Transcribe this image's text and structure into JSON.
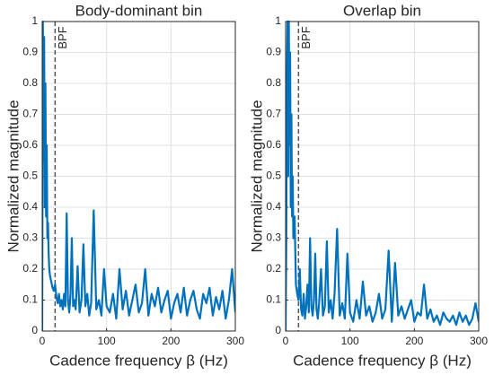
{
  "chart_data": [
    {
      "type": "line",
      "title": "Body-dominant bin",
      "xlabel": "Cadence frequency β (Hz)",
      "ylabel": "Normalized magnitude",
      "color": "#0072bd",
      "grid": true,
      "xlim": [
        0,
        300
      ],
      "ylim": [
        0,
        1
      ],
      "xticks": [
        0,
        100,
        200,
        300
      ],
      "yticks": [
        0,
        0.1,
        0.2,
        0.3,
        0.4,
        0.5,
        0.6,
        0.7,
        0.8,
        0.9,
        1
      ],
      "vline": 20,
      "annotation": "BPF",
      "x": [
        0,
        1,
        2,
        3,
        4,
        5,
        6,
        7,
        8,
        9,
        10,
        11,
        12,
        14,
        16,
        18,
        20,
        22,
        24,
        26,
        28,
        30,
        32,
        34,
        36,
        38,
        40,
        42,
        44,
        46,
        48,
        50,
        52,
        55,
        58,
        61,
        64,
        67,
        70,
        73,
        76,
        80,
        84,
        88,
        92,
        96,
        100,
        105,
        110,
        115,
        120,
        125,
        130,
        135,
        140,
        145,
        150,
        155,
        160,
        165,
        170,
        175,
        180,
        185,
        190,
        195,
        200,
        205,
        210,
        215,
        220,
        225,
        230,
        235,
        240,
        245,
        250,
        255,
        260,
        265,
        270,
        275,
        280,
        285,
        290,
        295,
        300
      ],
      "values": [
        0,
        1,
        0.55,
        0.95,
        0.4,
        0.8,
        0.37,
        0.6,
        0.3,
        0.35,
        0.25,
        0.2,
        0.18,
        0.16,
        0.14,
        0.13,
        0.15,
        0.11,
        0.09,
        0.12,
        0.08,
        0.1,
        0.07,
        0.12,
        0.08,
        0.38,
        0.1,
        0.06,
        0.12,
        0.3,
        0.08,
        0.1,
        0.07,
        0.21,
        0.06,
        0.1,
        0.28,
        0.08,
        0.12,
        0.05,
        0.09,
        0.39,
        0.07,
        0.1,
        0.05,
        0.2,
        0.08,
        0.06,
        0.12,
        0.04,
        0.2,
        0.07,
        0.13,
        0.05,
        0.1,
        0.15,
        0.06,
        0.09,
        0.2,
        0.05,
        0.12,
        0.08,
        0.14,
        0.06,
        0.1,
        0.13,
        0.04,
        0.09,
        0.12,
        0.06,
        0.14,
        0.05,
        0.1,
        0.13,
        0.07,
        0.04,
        0.12,
        0.09,
        0.14,
        0.05,
        0.11,
        0.07,
        0.13,
        0.04,
        0.1,
        0.2,
        0.06
      ]
    },
    {
      "type": "line",
      "title": "Overlap bin",
      "xlabel": "Cadence frequency β (Hz)",
      "ylabel": "Normalized magnitude",
      "color": "#0072bd",
      "grid": true,
      "xlim": [
        0,
        300
      ],
      "ylim": [
        0,
        1
      ],
      "xticks": [
        0,
        100,
        200,
        300
      ],
      "yticks": [
        0,
        0.1,
        0.2,
        0.3,
        0.4,
        0.5,
        0.6,
        0.7,
        0.8,
        0.9,
        1
      ],
      "vline": 20,
      "annotation": "BPF",
      "x": [
        0,
        1,
        2,
        3,
        4,
        5,
        6,
        7,
        8,
        9,
        10,
        11,
        12,
        14,
        16,
        18,
        20,
        22,
        24,
        26,
        28,
        30,
        32,
        34,
        36,
        38,
        40,
        42,
        44,
        46,
        48,
        50,
        52,
        55,
        58,
        61,
        64,
        67,
        70,
        73,
        76,
        80,
        84,
        88,
        92,
        96,
        100,
        105,
        110,
        115,
        120,
        125,
        130,
        135,
        140,
        145,
        150,
        155,
        160,
        165,
        170,
        175,
        180,
        185,
        190,
        195,
        200,
        205,
        210,
        215,
        220,
        225,
        230,
        235,
        240,
        245,
        250,
        255,
        260,
        265,
        270,
        275,
        280,
        285,
        290,
        295,
        300
      ],
      "values": [
        0,
        0.3,
        0.8,
        1,
        0.5,
        1,
        0.6,
        0.9,
        0.4,
        0.7,
        0.37,
        0.5,
        0.3,
        0.37,
        0.15,
        0.12,
        0.1,
        0.2,
        0.07,
        0.05,
        0.12,
        0.04,
        0.08,
        0.15,
        0.06,
        0.3,
        0.08,
        0.05,
        0.1,
        0.25,
        0.07,
        0.04,
        0.09,
        0.2,
        0.05,
        0.08,
        0.29,
        0.06,
        0.1,
        0.04,
        0.12,
        0.33,
        0.05,
        0.09,
        0.04,
        0.25,
        0.06,
        0.03,
        0.1,
        0.04,
        0.16,
        0.05,
        0.08,
        0.03,
        0.06,
        0.12,
        0.04,
        0.07,
        0.26,
        0.03,
        0.22,
        0.05,
        0.08,
        0.04,
        0.07,
        0.1,
        0.03,
        0.06,
        0.05,
        0.15,
        0.04,
        0.07,
        0.03,
        0.05,
        0.02,
        0.06,
        0.04,
        0.03,
        0.05,
        0.02,
        0.06,
        0.03,
        0.05,
        0.02,
        0.04,
        0.09,
        0.03
      ]
    }
  ]
}
